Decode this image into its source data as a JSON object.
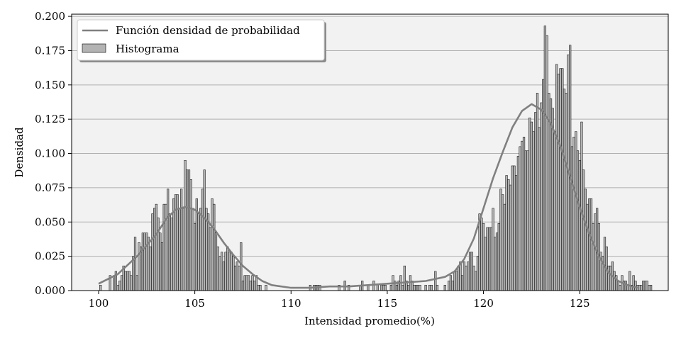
{
  "chart_data": {
    "type": "bar",
    "title": "",
    "xlabel": "Intensidad promedio(%)",
    "ylabel": "Densidad",
    "xlim": [
      98.6,
      129.6
    ],
    "ylim": [
      0,
      0.2016
    ],
    "xticks": [
      100,
      105,
      110,
      115,
      120,
      125
    ],
    "yticks": [
      0.0,
      0.025,
      0.05,
      0.075,
      0.1,
      0.125,
      0.15,
      0.175,
      0.2
    ],
    "ytick_labels": [
      "0.000",
      "0.025",
      "0.050",
      "0.075",
      "0.100",
      "0.125",
      "0.150",
      "0.175",
      "0.200"
    ],
    "grid": "horizontal",
    "legend_position": "top-left",
    "legend": [
      "Función densidad de probabilidad",
      "Histograma"
    ],
    "colors": {
      "plot_background": "#f2f2f2",
      "bar_fill": "#b3b3b3",
      "bar_edge": "#000000",
      "curve": "#808080",
      "grid": "#b0b0b0"
    },
    "series": [
      {
        "name": "Histograma",
        "kind": "histogram",
        "bin_width": 0.1,
        "bins": [
          [
            100.1,
            0.004
          ],
          [
            100.6,
            0.011
          ],
          [
            100.8,
            0.011
          ],
          [
            100.9,
            0.014
          ],
          [
            101.0,
            0.004
          ],
          [
            101.1,
            0.007
          ],
          [
            101.2,
            0.011
          ],
          [
            101.3,
            0.018
          ],
          [
            101.4,
            0.014
          ],
          [
            101.5,
            0.014
          ],
          [
            101.6,
            0.014
          ],
          [
            101.7,
            0.011
          ],
          [
            101.8,
            0.025
          ],
          [
            101.9,
            0.039
          ],
          [
            102.0,
            0.011
          ],
          [
            102.1,
            0.035
          ],
          [
            102.2,
            0.032
          ],
          [
            102.3,
            0.042
          ],
          [
            102.4,
            0.042
          ],
          [
            102.5,
            0.042
          ],
          [
            102.6,
            0.039
          ],
          [
            102.7,
            0.032
          ],
          [
            102.8,
            0.056
          ],
          [
            102.9,
            0.06
          ],
          [
            103.0,
            0.063
          ],
          [
            103.1,
            0.053
          ],
          [
            103.2,
            0.042
          ],
          [
            103.3,
            0.035
          ],
          [
            103.4,
            0.063
          ],
          [
            103.5,
            0.063
          ],
          [
            103.6,
            0.074
          ],
          [
            103.7,
            0.056
          ],
          [
            103.8,
            0.053
          ],
          [
            103.9,
            0.067
          ],
          [
            104.0,
            0.07
          ],
          [
            104.1,
            0.07
          ],
          [
            104.2,
            0.06
          ],
          [
            104.3,
            0.074
          ],
          [
            104.4,
            0.06
          ],
          [
            104.5,
            0.095
          ],
          [
            104.6,
            0.088
          ],
          [
            104.7,
            0.088
          ],
          [
            104.8,
            0.081
          ],
          [
            104.9,
            0.06
          ],
          [
            105.0,
            0.049
          ],
          [
            105.1,
            0.067
          ],
          [
            105.2,
            0.056
          ],
          [
            105.3,
            0.06
          ],
          [
            105.4,
            0.074
          ],
          [
            105.5,
            0.088
          ],
          [
            105.6,
            0.06
          ],
          [
            105.7,
            0.056
          ],
          [
            105.8,
            0.046
          ],
          [
            105.9,
            0.067
          ],
          [
            106.0,
            0.063
          ],
          [
            106.1,
            0.042
          ],
          [
            106.2,
            0.032
          ],
          [
            106.3,
            0.025
          ],
          [
            106.4,
            0.028
          ],
          [
            106.5,
            0.021
          ],
          [
            106.6,
            0.028
          ],
          [
            106.7,
            0.032
          ],
          [
            106.8,
            0.028
          ],
          [
            106.9,
            0.028
          ],
          [
            107.0,
            0.025
          ],
          [
            107.1,
            0.018
          ],
          [
            107.2,
            0.021
          ],
          [
            107.3,
            0.018
          ],
          [
            107.4,
            0.035
          ],
          [
            107.5,
            0.007
          ],
          [
            107.6,
            0.011
          ],
          [
            107.7,
            0.011
          ],
          [
            107.8,
            0.011
          ],
          [
            107.9,
            0.007
          ],
          [
            108.0,
            0.011
          ],
          [
            108.1,
            0.007
          ],
          [
            108.2,
            0.011
          ],
          [
            108.3,
            0.004
          ],
          [
            108.4,
            0.004
          ],
          [
            108.7,
            0.004
          ],
          [
            111.0,
            0.004
          ],
          [
            111.2,
            0.004
          ],
          [
            111.3,
            0.004
          ],
          [
            111.4,
            0.004
          ],
          [
            111.5,
            0.004
          ],
          [
            112.5,
            0.004
          ],
          [
            112.8,
            0.007
          ],
          [
            113.0,
            0.004
          ],
          [
            113.6,
            0.004
          ],
          [
            113.7,
            0.007
          ],
          [
            114.0,
            0.004
          ],
          [
            114.3,
            0.007
          ],
          [
            114.5,
            0.004
          ],
          [
            114.7,
            0.004
          ],
          [
            114.8,
            0.004
          ],
          [
            114.9,
            0.004
          ],
          [
            115.2,
            0.004
          ],
          [
            115.3,
            0.011
          ],
          [
            115.4,
            0.007
          ],
          [
            115.5,
            0.004
          ],
          [
            115.6,
            0.007
          ],
          [
            115.7,
            0.011
          ],
          [
            115.8,
            0.004
          ],
          [
            115.9,
            0.018
          ],
          [
            116.0,
            0.007
          ],
          [
            116.1,
            0.004
          ],
          [
            116.2,
            0.011
          ],
          [
            116.3,
            0.007
          ],
          [
            116.4,
            0.004
          ],
          [
            116.5,
            0.004
          ],
          [
            116.6,
            0.004
          ],
          [
            116.7,
            0.004
          ],
          [
            117.0,
            0.004
          ],
          [
            117.2,
            0.004
          ],
          [
            117.3,
            0.004
          ],
          [
            117.5,
            0.014
          ],
          [
            117.6,
            0.004
          ],
          [
            118.0,
            0.004
          ],
          [
            118.2,
            0.007
          ],
          [
            118.3,
            0.011
          ],
          [
            118.4,
            0.007
          ],
          [
            118.5,
            0.014
          ],
          [
            118.6,
            0.014
          ],
          [
            118.7,
            0.018
          ],
          [
            118.8,
            0.021
          ],
          [
            118.9,
            0.011
          ],
          [
            119.0,
            0.021
          ],
          [
            119.1,
            0.018
          ],
          [
            119.2,
            0.021
          ],
          [
            119.3,
            0.028
          ],
          [
            119.4,
            0.028
          ],
          [
            119.5,
            0.018
          ],
          [
            119.6,
            0.014
          ],
          [
            119.7,
            0.025
          ],
          [
            119.8,
            0.056
          ],
          [
            119.9,
            0.053
          ],
          [
            120.0,
            0.049
          ],
          [
            120.1,
            0.039
          ],
          [
            120.2,
            0.046
          ],
          [
            120.3,
            0.046
          ],
          [
            120.4,
            0.046
          ],
          [
            120.5,
            0.06
          ],
          [
            120.6,
            0.039
          ],
          [
            120.7,
            0.042
          ],
          [
            120.8,
            0.049
          ],
          [
            120.9,
            0.074
          ],
          [
            121.0,
            0.07
          ],
          [
            121.1,
            0.063
          ],
          [
            121.2,
            0.084
          ],
          [
            121.3,
            0.081
          ],
          [
            121.4,
            0.077
          ],
          [
            121.5,
            0.091
          ],
          [
            121.6,
            0.091
          ],
          [
            121.7,
            0.084
          ],
          [
            121.8,
            0.098
          ],
          [
            121.9,
            0.105
          ],
          [
            122.0,
            0.109
          ],
          [
            122.1,
            0.112
          ],
          [
            122.2,
            0.102
          ],
          [
            122.3,
            0.102
          ],
          [
            122.4,
            0.126
          ],
          [
            122.5,
            0.123
          ],
          [
            122.6,
            0.116
          ],
          [
            122.7,
            0.13
          ],
          [
            122.8,
            0.144
          ],
          [
            122.9,
            0.119
          ],
          [
            123.0,
            0.137
          ],
          [
            123.1,
            0.154
          ],
          [
            123.2,
            0.193
          ],
          [
            123.3,
            0.186
          ],
          [
            123.4,
            0.144
          ],
          [
            123.5,
            0.14
          ],
          [
            123.6,
            0.133
          ],
          [
            123.7,
            0.116
          ],
          [
            123.8,
            0.165
          ],
          [
            123.9,
            0.158
          ],
          [
            124.0,
            0.162
          ],
          [
            124.1,
            0.162
          ],
          [
            124.2,
            0.147
          ],
          [
            124.3,
            0.144
          ],
          [
            124.4,
            0.172
          ],
          [
            124.5,
            0.179
          ],
          [
            124.6,
            0.105
          ],
          [
            124.7,
            0.112
          ],
          [
            124.8,
            0.116
          ],
          [
            124.9,
            0.102
          ],
          [
            125.0,
            0.095
          ],
          [
            125.1,
            0.123
          ],
          [
            125.2,
            0.088
          ],
          [
            125.3,
            0.074
          ],
          [
            125.4,
            0.063
          ],
          [
            125.5,
            0.067
          ],
          [
            125.6,
            0.067
          ],
          [
            125.7,
            0.049
          ],
          [
            125.8,
            0.056
          ],
          [
            125.9,
            0.06
          ],
          [
            126.0,
            0.049
          ],
          [
            126.1,
            0.028
          ],
          [
            126.2,
            0.025
          ],
          [
            126.3,
            0.039
          ],
          [
            126.4,
            0.032
          ],
          [
            126.5,
            0.018
          ],
          [
            126.6,
            0.018
          ],
          [
            126.7,
            0.021
          ],
          [
            126.8,
            0.014
          ],
          [
            126.9,
            0.011
          ],
          [
            127.0,
            0.007
          ],
          [
            127.1,
            0.004
          ],
          [
            127.2,
            0.011
          ],
          [
            127.3,
            0.007
          ],
          [
            127.4,
            0.007
          ],
          [
            127.5,
            0.004
          ],
          [
            127.6,
            0.014
          ],
          [
            127.7,
            0.004
          ],
          [
            127.8,
            0.011
          ],
          [
            127.9,
            0.007
          ],
          [
            128.0,
            0.004
          ],
          [
            128.1,
            0.004
          ],
          [
            128.2,
            0.004
          ],
          [
            128.3,
            0.007
          ],
          [
            128.4,
            0.007
          ],
          [
            128.5,
            0.007
          ],
          [
            128.6,
            0.004
          ],
          [
            128.7,
            0.004
          ]
        ]
      },
      {
        "name": "Función densidad de probabilidad",
        "kind": "line",
        "x": [
          100.0,
          101.0,
          102.0,
          103.0,
          103.5,
          104.0,
          104.5,
          105.0,
          105.5,
          106.0,
          106.5,
          107.0,
          107.5,
          108.0,
          108.5,
          109.0,
          110.0,
          111.0,
          112.0,
          113.0,
          114.0,
          115.0,
          116.0,
          117.0,
          118.0,
          118.5,
          119.0,
          119.5,
          120.0,
          120.5,
          121.0,
          121.5,
          122.0,
          122.5,
          123.0,
          123.5,
          124.0,
          124.5,
          125.0,
          125.5,
          126.0,
          126.5,
          127.0,
          127.5,
          128.0
        ],
        "values": [
          0.005,
          0.012,
          0.025,
          0.041,
          0.052,
          0.059,
          0.061,
          0.059,
          0.053,
          0.045,
          0.035,
          0.026,
          0.018,
          0.012,
          0.007,
          0.004,
          0.002,
          0.002,
          0.003,
          0.003,
          0.004,
          0.005,
          0.006,
          0.007,
          0.01,
          0.014,
          0.023,
          0.038,
          0.06,
          0.082,
          0.101,
          0.119,
          0.131,
          0.136,
          0.132,
          0.122,
          0.105,
          0.083,
          0.061,
          0.041,
          0.025,
          0.013,
          0.007,
          0.004,
          0.002
        ]
      }
    ]
  }
}
